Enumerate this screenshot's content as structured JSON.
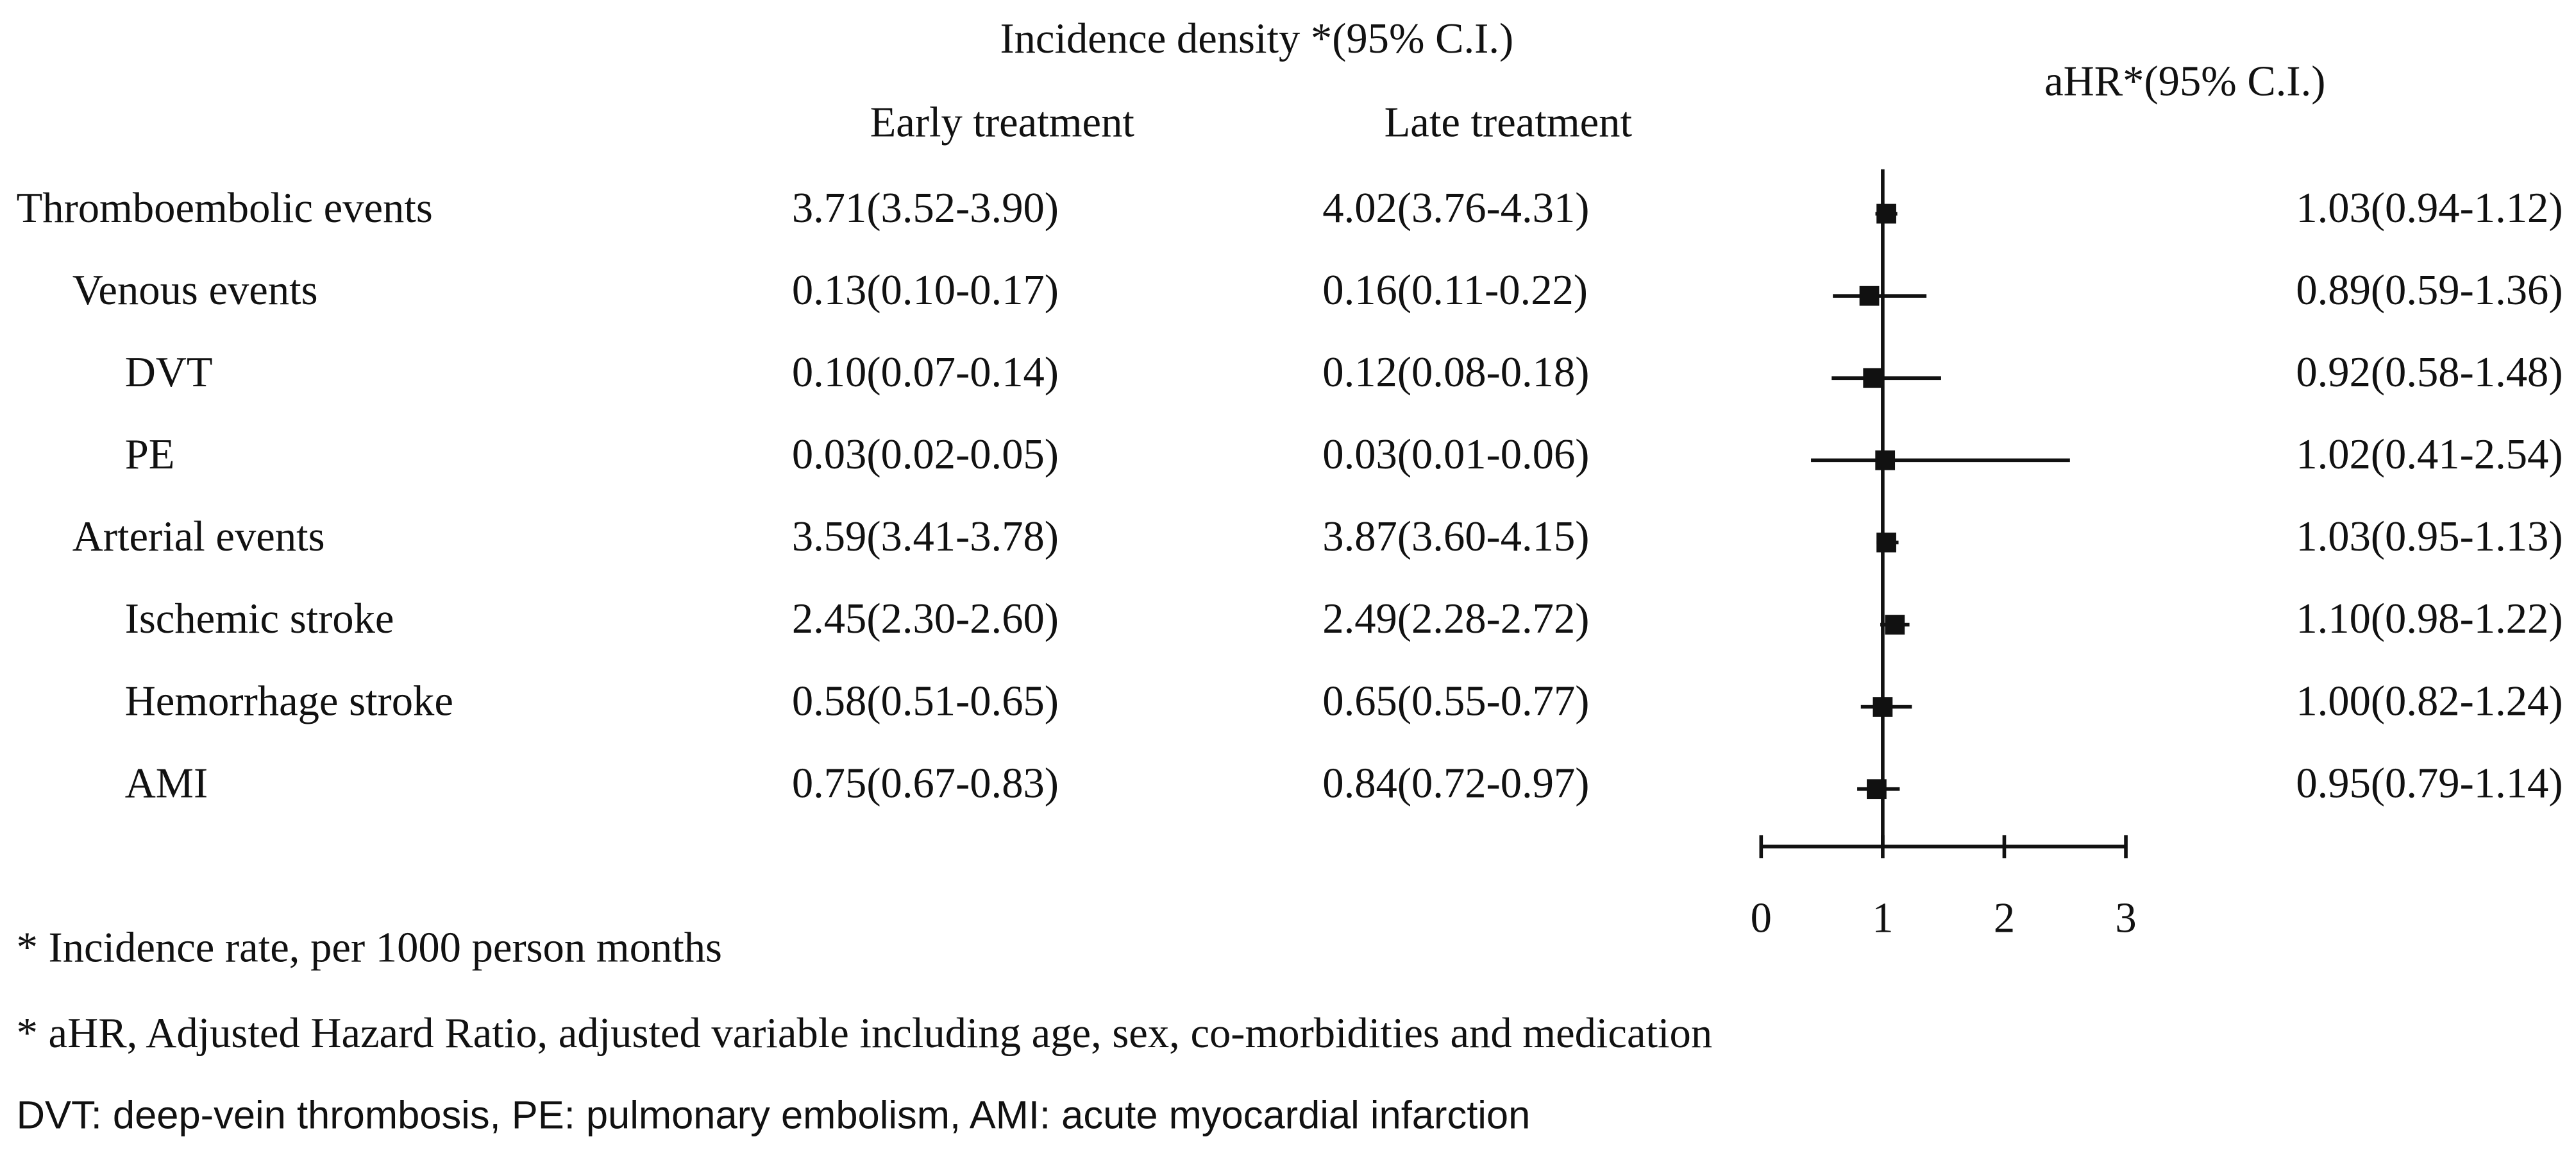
{
  "chart_data": {
    "type": "forest",
    "title": "Incidence density *(95% C.I.)",
    "columns": [
      "Early treatment",
      "Late treatment"
    ],
    "effect_title": "aHR*(95% C.I.)",
    "categories": [
      "Thromboembolic events",
      "Venous events",
      "DVT",
      "PE",
      "Arterial events",
      "Ischemic stroke",
      "Hemorrhage stroke",
      "AMI"
    ],
    "levels": [
      0,
      1,
      2,
      2,
      1,
      2,
      2,
      2
    ],
    "early": [
      "3.71(3.52-3.90)",
      "0.13(0.10-0.17)",
      "0.10(0.07-0.14)",
      "0.03(0.02-0.05)",
      "3.59(3.41-3.78)",
      "2.45(2.30-2.60)",
      "0.58(0.51-0.65)",
      "0.75(0.67-0.83)"
    ],
    "late": [
      "4.02(3.76-4.31)",
      "0.16(0.11-0.22)",
      "0.12(0.08-0.18)",
      "0.03(0.01-0.06)",
      "3.87(3.60-4.15)",
      "2.49(2.28-2.72)",
      "0.65(0.55-0.77)",
      "0.84(0.72-0.97)"
    ],
    "values": [
      1.03,
      0.89,
      0.92,
      1.02,
      1.03,
      1.1,
      1.0,
      0.95
    ],
    "lower": [
      0.94,
      0.59,
      0.58,
      0.41,
      0.95,
      0.98,
      0.82,
      0.79
    ],
    "upper": [
      1.12,
      1.36,
      1.48,
      2.54,
      1.13,
      1.22,
      1.24,
      1.14
    ],
    "value_labels": [
      "1.03(0.94-1.12)",
      "0.89(0.59-1.36)",
      "0.92(0.58-1.48)",
      "1.02(0.41-2.54)",
      "1.03(0.95-1.13)",
      "1.10(0.98-1.22)",
      "1.00(0.82-1.24)",
      "0.95(0.79-1.14)"
    ],
    "xlim": [
      0,
      3
    ],
    "xticks": [
      0,
      1,
      2,
      3
    ],
    "reference_line": 1,
    "color": "#111111",
    "footnotes": [
      "* Incidence rate, per 1000 person months",
      "* aHR, Adjusted Hazard Ratio, adjusted variable including age, sex, co-morbidities and medication",
      "DVT: deep-vein thrombosis, PE: pulmonary embolism, AMI: acute myocardial infarction"
    ]
  }
}
